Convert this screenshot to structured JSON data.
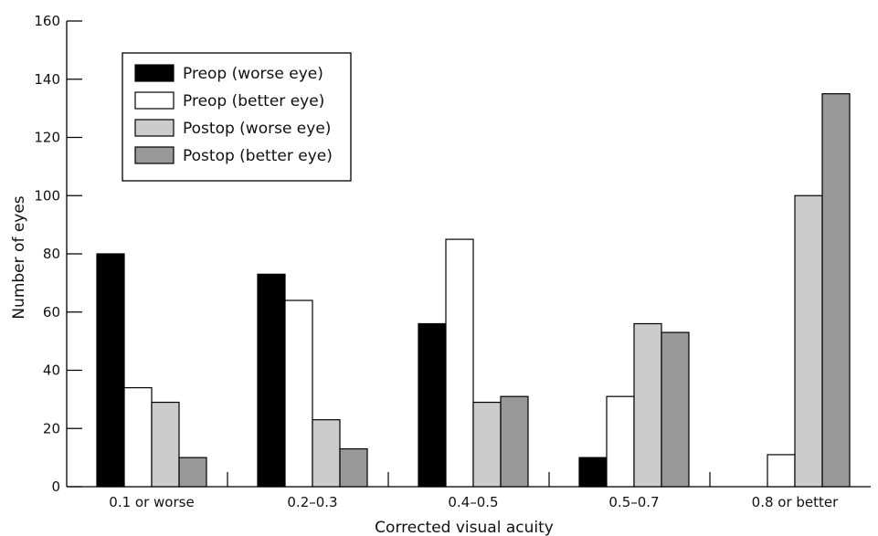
{
  "chart_data": {
    "type": "bar",
    "xlabel": "Corrected visual acuity",
    "ylabel": "Number of eyes",
    "ylim": [
      0,
      160
    ],
    "yticks": [
      0,
      20,
      40,
      60,
      80,
      100,
      120,
      140,
      160
    ],
    "grid": false,
    "legend_position": "top-left",
    "categories": [
      "0.1 or worse",
      "0.2–0.3",
      "0.4–0.5",
      "0.5–0.7",
      "0.8 or better"
    ],
    "series": [
      {
        "name": "Preop (worse eye)",
        "color": "#000000",
        "values": [
          80,
          73,
          56,
          10,
          0
        ]
      },
      {
        "name": "Preop (better eye)",
        "color": "#ffffff",
        "values": [
          34,
          64,
          85,
          31,
          11
        ]
      },
      {
        "name": "Postop (worse eye)",
        "color": "#cccccc",
        "values": [
          29,
          23,
          29,
          56,
          100
        ]
      },
      {
        "name": "Postop (better eye)",
        "color": "#999999",
        "values": [
          10,
          13,
          31,
          53,
          135
        ]
      }
    ]
  }
}
